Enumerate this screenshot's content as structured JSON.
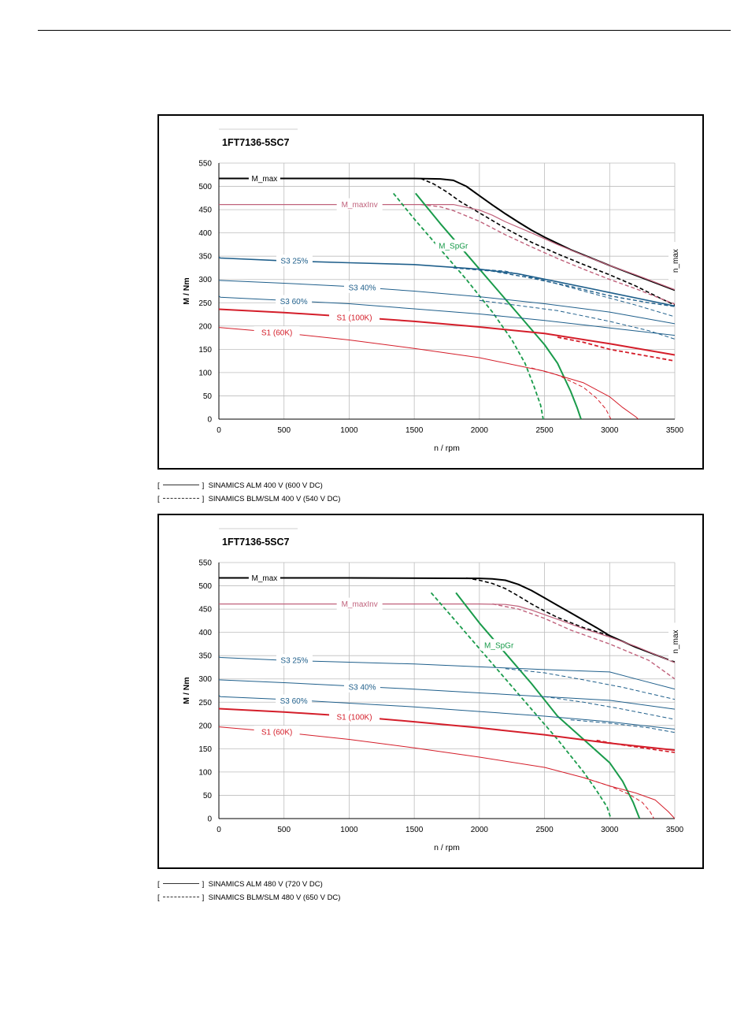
{
  "chart_data": [
    {
      "type": "line",
      "title": "1FT7136-5SC7",
      "xlabel": "n / rpm",
      "ylabel": "M / Nm",
      "xlim": [
        0,
        3500
      ],
      "ylim": [
        0,
        550
      ],
      "xticks": [
        0,
        500,
        1000,
        1500,
        2000,
        2500,
        3000,
        3500
      ],
      "yticks": [
        0,
        50,
        100,
        150,
        200,
        250,
        300,
        350,
        400,
        450,
        500,
        550
      ],
      "grid": true,
      "legend": [
        {
          "bracket_open": "[",
          "bracket_close": "]",
          "style": "solid",
          "text": "SINAMICS ALM 400 V (600 V DC)"
        },
        {
          "bracket_open": "[",
          "bracket_close": "]",
          "style": "dashed",
          "text": "SINAMICS BLM/SLM 400 V (540 V DC)"
        }
      ],
      "series": [
        {
          "name": "M_max",
          "color": "#000000",
          "width": 2.0,
          "dash": false,
          "label_x": 350,
          "label_y": 517,
          "x": [
            0,
            1000,
            1500,
            1700,
            1800,
            1900,
            2000,
            2100,
            2200,
            2300,
            2400,
            2500,
            2700,
            3000,
            3500
          ],
          "y": [
            517,
            517,
            517,
            516,
            513,
            500,
            480,
            460,
            441,
            423,
            406,
            391,
            364,
            330,
            277
          ]
        },
        {
          "name": "",
          "color": "#000000",
          "width": 1.6,
          "dash": true,
          "x": [
            1550,
            1650,
            1750,
            1850,
            2000,
            2200,
            2400,
            2600,
            2800,
            3000,
            3200,
            3400,
            3500
          ],
          "y": [
            517,
            505,
            488,
            468,
            443,
            410,
            380,
            355,
            332,
            310,
            286,
            258,
            245
          ]
        },
        {
          "name": "M_maxInv",
          "color": "#c0627c",
          "width": 1.2,
          "dash": false,
          "label_x": 1080,
          "label_y": 461,
          "x": [
            0,
            1000,
            1800,
            2000,
            2100,
            2200,
            2400,
            2600,
            2800,
            3000,
            3200,
            3500
          ],
          "y": [
            461,
            461,
            461,
            449,
            438,
            424,
            400,
            375,
            352,
            330,
            310,
            278
          ]
        },
        {
          "name": "",
          "color": "#c0627c",
          "width": 1.4,
          "dash": true,
          "x": [
            1550,
            1700,
            1800,
            2000,
            2200,
            2400,
            2600,
            2800,
            3000,
            3200,
            3500
          ],
          "y": [
            461,
            456,
            448,
            425,
            396,
            370,
            345,
            322,
            300,
            280,
            247
          ]
        },
        {
          "name": "M_SpGr",
          "color": "#1a9b4b",
          "width": 2.0,
          "dash": false,
          "label_x": 1800,
          "label_y": 372,
          "x": [
            1510,
            1700,
            1900,
            2100,
            2300,
            2500,
            2600,
            2700,
            2750,
            2780
          ],
          "y": [
            485,
            420,
            355,
            290,
            225,
            160,
            120,
            60,
            25,
            0
          ]
        },
        {
          "name": "",
          "color": "#1a9b4b",
          "width": 1.8,
          "dash": true,
          "x": [
            1340,
            1500,
            1700,
            1900,
            2100,
            2250,
            2350,
            2420,
            2470,
            2490
          ],
          "y": [
            485,
            430,
            365,
            300,
            230,
            170,
            120,
            70,
            30,
            0
          ]
        },
        {
          "name": "S3 25%",
          "color": "#1f5f8b",
          "width": 1.6,
          "dash": false,
          "label_x": 580,
          "label_y": 340,
          "x": [
            0,
            10,
            500,
            1000,
            1500,
            2000,
            2300,
            2600,
            3000,
            3500
          ],
          "y": [
            348,
            346,
            340,
            336,
            332,
            322,
            312,
            295,
            272,
            243
          ]
        },
        {
          "name": "",
          "color": "#1f5f8b",
          "width": 1.4,
          "dash": true,
          "x": [
            1800,
            2100,
            2400,
            2700,
            3000,
            3300,
            3500
          ],
          "y": [
            325,
            318,
            303,
            285,
            265,
            250,
            242
          ]
        },
        {
          "name": "S3 40%",
          "color": "#1f5f8b",
          "width": 1.0,
          "dash": false,
          "label_x": 1100,
          "label_y": 283,
          "x": [
            0,
            500,
            1000,
            1500,
            2000,
            2500,
            3000,
            3500
          ],
          "y": [
            298,
            292,
            285,
            275,
            263,
            248,
            230,
            205
          ]
        },
        {
          "name": "",
          "color": "#1f5f8b",
          "width": 1.0,
          "dash": true,
          "x": [
            2000,
            2200,
            2500,
            2800,
            3200,
            3500
          ],
          "y": [
            322,
            318,
            298,
            275,
            245,
            220
          ]
        },
        {
          "name": "S3 60%",
          "color": "#1f5f8b",
          "width": 1.0,
          "dash": false,
          "label_x": 575,
          "label_y": 253,
          "x": [
            0,
            10,
            500,
            1000,
            1500,
            2000,
            2500,
            3000,
            3500
          ],
          "y": [
            265,
            262,
            255,
            248,
            237,
            226,
            212,
            196,
            180
          ]
        },
        {
          "name": "",
          "color": "#1f5f8b",
          "width": 1.0,
          "dash": true,
          "x": [
            2000,
            2300,
            2600,
            3000,
            3300,
            3500
          ],
          "y": [
            255,
            244,
            233,
            210,
            190,
            172
          ]
        },
        {
          "name": "S1 (100K)",
          "color": "#d41e2a",
          "width": 2.0,
          "dash": false,
          "label_x": 1040,
          "label_y": 218,
          "x": [
            0,
            500,
            1000,
            1500,
            2000,
            2500,
            3000,
            3500
          ],
          "y": [
            236,
            229,
            220,
            210,
            198,
            184,
            162,
            138
          ]
        },
        {
          "name": "",
          "color": "#d41e2a",
          "width": 1.8,
          "dash": true,
          "x": [
            2600,
            2800,
            3000,
            3200,
            3500
          ],
          "y": [
            176,
            165,
            150,
            140,
            125
          ]
        },
        {
          "name": "S1 (60K)",
          "color": "#d41e2a",
          "width": 1.0,
          "dash": false,
          "label_x": 445,
          "label_y": 186,
          "x": [
            0,
            500,
            1000,
            1500,
            2000,
            2500,
            2800,
            3000,
            3100,
            3200,
            3220
          ],
          "y": [
            197,
            185,
            170,
            152,
            132,
            103,
            78,
            48,
            25,
            5,
            0
          ]
        },
        {
          "name": "",
          "color": "#d41e2a",
          "width": 1.0,
          "dash": true,
          "x": [
            2400,
            2600,
            2800,
            2900,
            2970,
            3010
          ],
          "y": [
            110,
            95,
            68,
            45,
            22,
            0
          ]
        }
      ],
      "annotations": [
        {
          "text": "n_max",
          "x": 3500,
          "y": 340,
          "rotation": -90
        }
      ]
    },
    {
      "type": "line",
      "title": "1FT7136-5SC7",
      "xlabel": "n / rpm",
      "ylabel": "M / Nm",
      "xlim": [
        0,
        3500
      ],
      "ylim": [
        0,
        550
      ],
      "xticks": [
        0,
        500,
        1000,
        1500,
        2000,
        2500,
        3000,
        3500
      ],
      "yticks": [
        0,
        50,
        100,
        150,
        200,
        250,
        300,
        350,
        400,
        450,
        500,
        550
      ],
      "grid": true,
      "legend": [
        {
          "bracket_open": "[",
          "bracket_close": "]",
          "style": "solid",
          "text": "SINAMICS ALM 480 V (720 V DC)"
        },
        {
          "bracket_open": "[",
          "bracket_close": "]",
          "style": "dashed",
          "text": "SINAMICS BLM/SLM 480 V (650 V DC)"
        }
      ],
      "series": [
        {
          "name": "M_max",
          "color": "#000000",
          "width": 2.0,
          "dash": false,
          "label_x": 350,
          "label_y": 517,
          "x": [
            0,
            1000,
            2000,
            2100,
            2200,
            2300,
            2400,
            2500,
            2600,
            2700,
            2800,
            2900,
            3000,
            3200,
            3500
          ],
          "y": [
            517,
            517,
            516,
            515,
            512,
            503,
            490,
            474,
            458,
            442,
            426,
            410,
            393,
            368,
            336
          ]
        },
        {
          "name": "",
          "color": "#000000",
          "width": 1.6,
          "dash": true,
          "x": [
            1900,
            2000,
            2100,
            2200,
            2300,
            2400,
            2500,
            2600,
            2800,
            3000
          ],
          "y": [
            517,
            512,
            505,
            494,
            478,
            461,
            446,
            432,
            410,
            393
          ]
        },
        {
          "name": "M_maxInv",
          "color": "#c0627c",
          "width": 1.2,
          "dash": false,
          "label_x": 1080,
          "label_y": 461,
          "x": [
            0,
            1000,
            2000,
            2200,
            2300,
            2400,
            2600,
            2800,
            3000,
            3200,
            3500
          ],
          "y": [
            461,
            461,
            461,
            460,
            456,
            448,
            428,
            408,
            390,
            370,
            335
          ]
        },
        {
          "name": "",
          "color": "#c0627c",
          "width": 1.4,
          "dash": true,
          "x": [
            2100,
            2300,
            2500,
            2700,
            3000,
            3300,
            3500
          ],
          "y": [
            461,
            450,
            430,
            405,
            375,
            340,
            300
          ]
        },
        {
          "name": "M_SpGr",
          "color": "#1a9b4b",
          "width": 2.0,
          "dash": false,
          "label_x": 2150,
          "label_y": 372,
          "x": [
            1820,
            2000,
            2200,
            2400,
            2600,
            2800,
            3000,
            3100,
            3180,
            3230
          ],
          "y": [
            485,
            420,
            355,
            290,
            220,
            170,
            120,
            80,
            35,
            0
          ]
        },
        {
          "name": "",
          "color": "#1a9b4b",
          "width": 1.8,
          "dash": true,
          "x": [
            1630,
            1800,
            2000,
            2200,
            2400,
            2600,
            2800,
            2900,
            2980,
            3010
          ],
          "y": [
            485,
            430,
            365,
            300,
            235,
            170,
            100,
            60,
            25,
            0
          ]
        },
        {
          "name": "S3 25%",
          "color": "#1f5f8b",
          "width": 1.0,
          "dash": false,
          "label_x": 580,
          "label_y": 340,
          "x": [
            0,
            10,
            500,
            1000,
            1500,
            2000,
            2500,
            3000,
            3200,
            3500
          ],
          "y": [
            348,
            346,
            340,
            336,
            332,
            326,
            320,
            315,
            300,
            278
          ]
        },
        {
          "name": "",
          "color": "#1f5f8b",
          "width": 1.0,
          "dash": true,
          "x": [
            2200,
            2500,
            2800,
            3100,
            3500
          ],
          "y": [
            322,
            313,
            298,
            282,
            256
          ]
        },
        {
          "name": "S3 40%",
          "color": "#1f5f8b",
          "width": 1.0,
          "dash": false,
          "label_x": 1100,
          "label_y": 283,
          "x": [
            0,
            500,
            1000,
            1500,
            2000,
            2500,
            3000,
            3500
          ],
          "y": [
            298,
            292,
            285,
            278,
            270,
            262,
            254,
            235
          ]
        },
        {
          "name": "",
          "color": "#1f5f8b",
          "width": 1.0,
          "dash": true,
          "x": [
            2500,
            2800,
            3100,
            3500
          ],
          "y": [
            262,
            250,
            235,
            213
          ]
        },
        {
          "name": "S3 60%",
          "color": "#1f5f8b",
          "width": 1.0,
          "dash": false,
          "label_x": 575,
          "label_y": 253,
          "x": [
            0,
            10,
            500,
            1000,
            1500,
            2000,
            2500,
            3000,
            3500
          ],
          "y": [
            265,
            262,
            256,
            248,
            240,
            230,
            220,
            208,
            192
          ]
        },
        {
          "name": "",
          "color": "#1f5f8b",
          "width": 1.0,
          "dash": true,
          "x": [
            2700,
            3000,
            3300,
            3500
          ],
          "y": [
            212,
            205,
            195,
            185
          ]
        },
        {
          "name": "S1 (100K)",
          "color": "#d41e2a",
          "width": 2.0,
          "dash": false,
          "label_x": 1040,
          "label_y": 218,
          "x": [
            0,
            500,
            1000,
            1500,
            2000,
            2500,
            3000,
            3500
          ],
          "y": [
            236,
            229,
            220,
            208,
            195,
            180,
            162,
            147
          ]
        },
        {
          "name": "",
          "color": "#d41e2a",
          "width": 1.6,
          "dash": true,
          "x": [
            2900,
            3100,
            3300,
            3500
          ],
          "y": [
            168,
            158,
            150,
            142
          ]
        },
        {
          "name": "S1 (60K)",
          "color": "#d41e2a",
          "width": 1.0,
          "dash": false,
          "label_x": 445,
          "label_y": 186,
          "x": [
            0,
            500,
            1000,
            1500,
            2000,
            2500,
            2800,
            3000,
            3200,
            3350,
            3450,
            3500
          ],
          "y": [
            197,
            185,
            170,
            152,
            132,
            110,
            88,
            70,
            55,
            40,
            15,
            0
          ]
        },
        {
          "name": "",
          "color": "#d41e2a",
          "width": 1.0,
          "dash": true,
          "x": [
            2800,
            3000,
            3150,
            3250,
            3310,
            3340
          ],
          "y": [
            88,
            70,
            52,
            35,
            15,
            0
          ]
        }
      ],
      "annotations": [
        {
          "text": "n_max",
          "x": 3500,
          "y": 380,
          "rotation": -90
        }
      ]
    }
  ]
}
